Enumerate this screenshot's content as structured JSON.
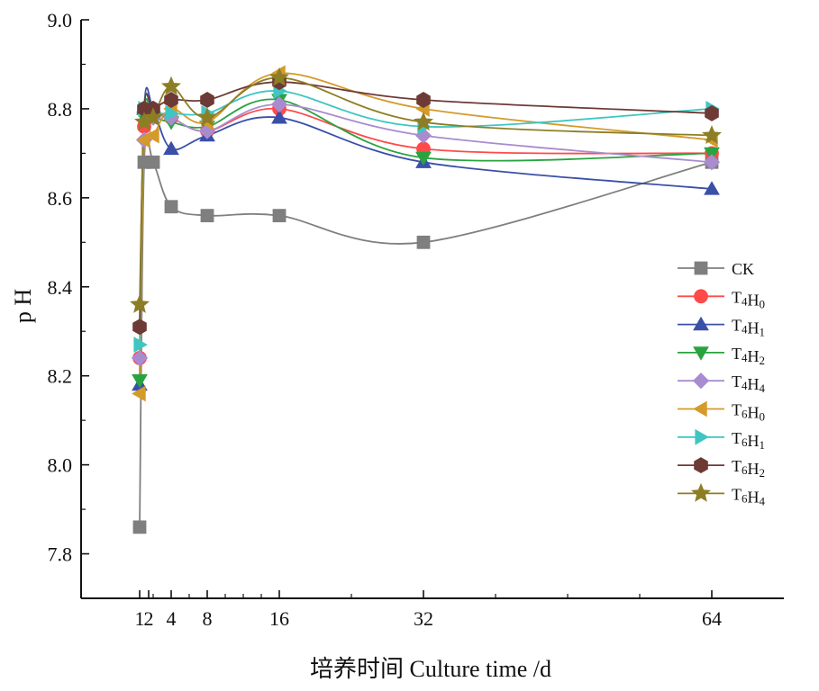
{
  "chart_data": {
    "type": "line",
    "xlabel": "培养时间 Culture time /d",
    "ylabel": "p H",
    "ylim": [
      7.7,
      9.0
    ],
    "xlim": [
      -6,
      72
    ],
    "x": [
      0.5,
      1,
      2,
      4,
      8,
      16,
      32,
      64
    ],
    "yticks": [
      7.8,
      8.0,
      8.2,
      8.4,
      8.6,
      8.8,
      9.0
    ],
    "ytick_labels": [
      "7.8",
      "8.0",
      "8.2",
      "8.4",
      "8.6",
      "8.8",
      "9.0"
    ],
    "xticks": [
      {
        "value": 0.5,
        "label": "1"
      },
      {
        "value": 1.5,
        "label": "2"
      },
      {
        "value": 4,
        "label": "4"
      },
      {
        "value": 8,
        "label": "8"
      },
      {
        "value": 16,
        "label": "16"
      },
      {
        "value": 32,
        "label": "32"
      },
      {
        "value": 64,
        "label": "64"
      }
    ],
    "minor_xticks": [
      2,
      6,
      10,
      12,
      14,
      24,
      40,
      48,
      56
    ],
    "grid": false,
    "legend_position": "right",
    "series": [
      {
        "name": "CK",
        "legend_main": [
          "CK"
        ],
        "legend_sub": [],
        "color": "#7f7f7f",
        "marker": "square",
        "values": [
          7.86,
          8.68,
          8.68,
          8.58,
          8.56,
          8.56,
          8.5,
          8.68
        ]
      },
      {
        "name": "T4H0",
        "legend_main": [
          "T",
          "H"
        ],
        "legend_sub": [
          "4",
          "0"
        ],
        "color": "#ff4a4a",
        "marker": "circle",
        "values": [
          8.24,
          8.76,
          8.79,
          8.78,
          8.75,
          8.8,
          8.71,
          8.7
        ]
      },
      {
        "name": "T4H1",
        "legend_main": [
          "T",
          "H"
        ],
        "legend_sub": [
          "4",
          "1"
        ],
        "color": "#3a4fa8",
        "marker": "triangle-up",
        "values": [
          8.18,
          8.8,
          8.8,
          8.71,
          8.74,
          8.78,
          8.68,
          8.62
        ]
      },
      {
        "name": "T4H2",
        "legend_main": [
          "T",
          "H"
        ],
        "legend_sub": [
          "4",
          "2"
        ],
        "color": "#29a33f",
        "marker": "triangle-down",
        "values": [
          8.19,
          8.78,
          8.78,
          8.77,
          8.76,
          8.82,
          8.69,
          8.7
        ]
      },
      {
        "name": "T4H4",
        "legend_main": [
          "T",
          "H"
        ],
        "legend_sub": [
          "4",
          "4"
        ],
        "color": "#a98bd0",
        "marker": "diamond",
        "values": [
          8.24,
          8.73,
          8.78,
          8.78,
          8.75,
          8.81,
          8.74,
          8.68
        ]
      },
      {
        "name": "T6H0",
        "legend_main": [
          "T",
          "H"
        ],
        "legend_sub": [
          "6",
          "0"
        ],
        "color": "#d49a2a",
        "marker": "triangle-left",
        "values": [
          8.16,
          8.73,
          8.74,
          8.8,
          8.77,
          8.88,
          8.8,
          8.73
        ]
      },
      {
        "name": "T6H1",
        "legend_main": [
          "T",
          "H"
        ],
        "legend_sub": [
          "6",
          "1"
        ],
        "color": "#3fc6c2",
        "marker": "triangle-right",
        "values": [
          8.27,
          8.8,
          8.79,
          8.79,
          8.79,
          8.84,
          8.76,
          8.8
        ]
      },
      {
        "name": "T6H2",
        "legend_main": [
          "T",
          "H"
        ],
        "legend_sub": [
          "6",
          "2"
        ],
        "color": "#6e3a35",
        "marker": "hexagon",
        "values": [
          8.31,
          8.8,
          8.8,
          8.82,
          8.82,
          8.86,
          8.82,
          8.79
        ]
      },
      {
        "name": "T6H4",
        "legend_main": [
          "T",
          "H"
        ],
        "legend_sub": [
          "6",
          "4"
        ],
        "color": "#8d7e25",
        "marker": "star",
        "values": [
          8.36,
          8.77,
          8.78,
          8.85,
          8.78,
          8.87,
          8.77,
          8.74
        ]
      }
    ]
  }
}
